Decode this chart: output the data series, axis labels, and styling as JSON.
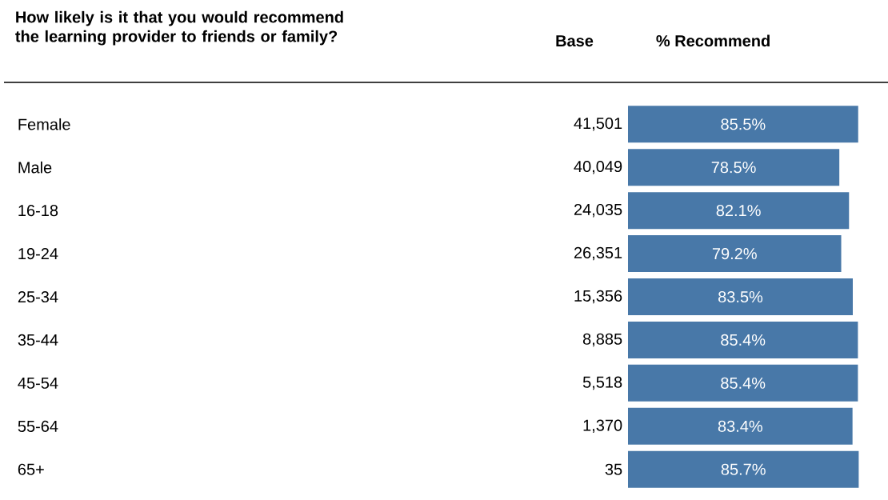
{
  "chart_data": {
    "type": "bar",
    "orientation": "horizontal",
    "title": "How likely is it that you would recommend\nthe learning provider to friends or family?",
    "xlabel": "% Recommend",
    "categories": [
      "Female",
      "Male",
      "16-18",
      "19-24",
      "25-34",
      "35-44",
      "45-54",
      "55-64",
      "65+"
    ],
    "values": [
      85.5,
      78.5,
      82.1,
      79.2,
      83.5,
      85.4,
      85.4,
      83.4,
      85.7
    ],
    "value_labels": [
      "85.5%",
      "78.5%",
      "82.1%",
      "79.2%",
      "83.5%",
      "85.4%",
      "85.4%",
      "83.4%",
      "85.7%"
    ],
    "color": "#4878a8",
    "tick_labels": "y",
    "annotations": [
      "Base",
      "41,501",
      "40,049",
      "24,035",
      "26,351",
      "15,356",
      "8,885",
      "5,518",
      "1,370",
      "35"
    ]
  }
}
